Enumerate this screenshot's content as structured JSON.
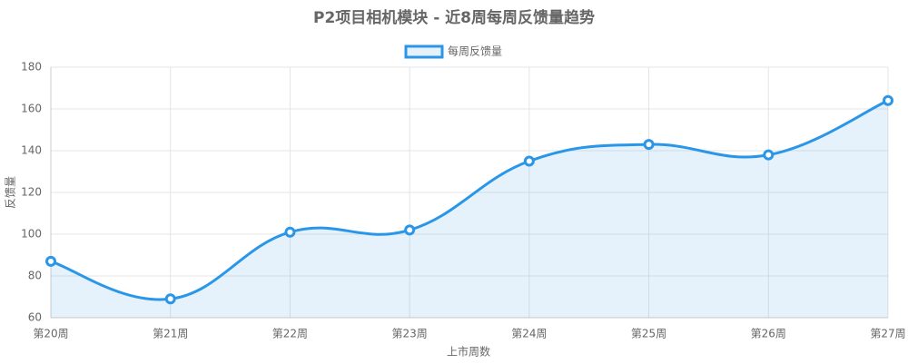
{
  "chart_data": {
    "type": "line",
    "title": "P2项目相机模块 - 近8周每周反馈量趋势",
    "x_label": "上市周数",
    "y_label": "反馈量",
    "categories": [
      "第20周",
      "第21周",
      "第22周",
      "第23周",
      "第24周",
      "第25周",
      "第26周",
      "第27周"
    ],
    "series": [
      {
        "name": "每周反馈量",
        "color": "#2a96e8",
        "values": [
          87,
          69,
          101,
          102,
          135,
          143,
          138,
          164
        ]
      }
    ],
    "ylim": [
      60,
      180
    ],
    "yticks": [
      60,
      80,
      100,
      120,
      140,
      160,
      180
    ],
    "grid": true,
    "area": true,
    "smooth": true
  }
}
